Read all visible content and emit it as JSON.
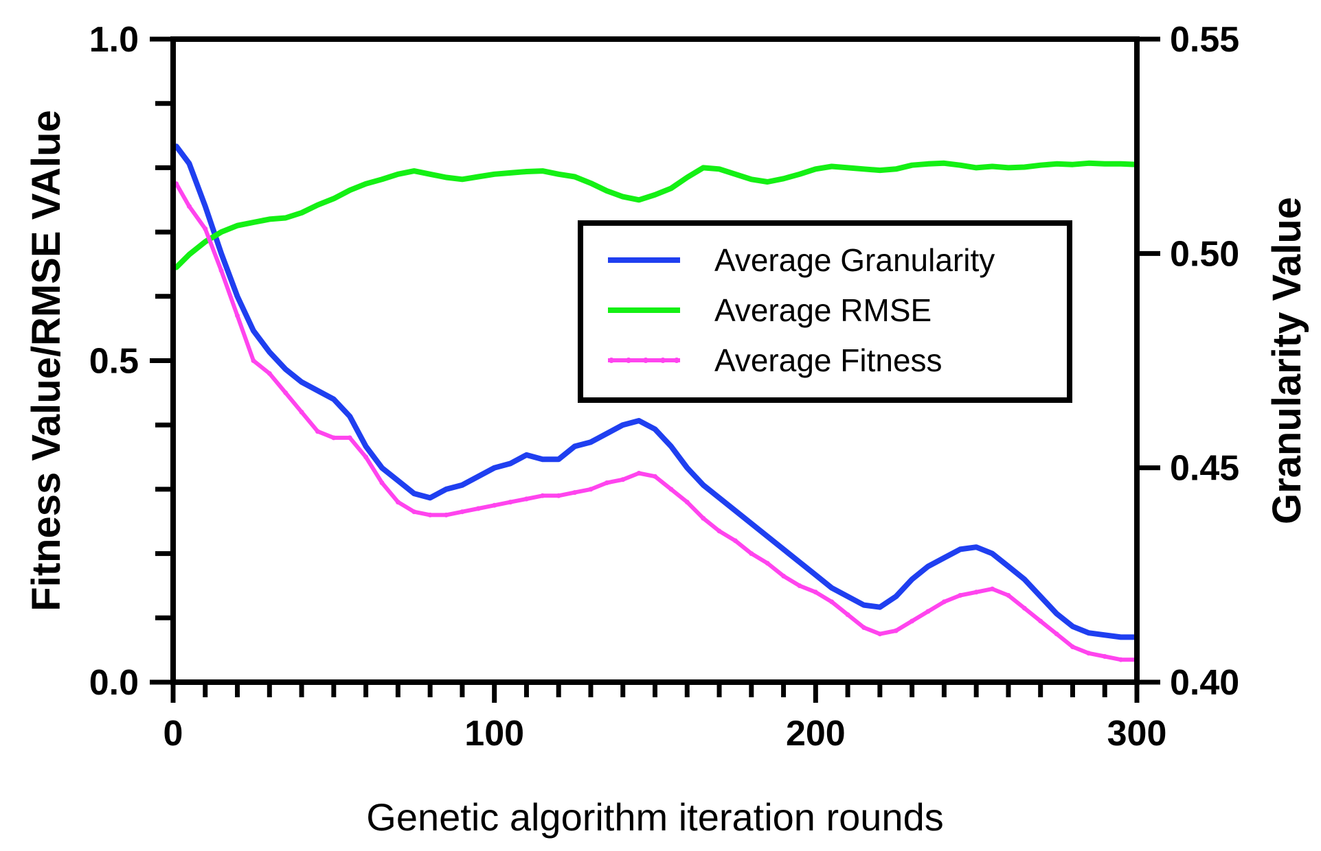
{
  "chart_data": {
    "type": "line",
    "xlabel": "Genetic algorithm iteration rounds",
    "ylabel_left": "Fitness Value/RMSE VAlue",
    "ylabel_right": "Granularity Value",
    "xlim": [
      0,
      300
    ],
    "ylim_left": [
      0.0,
      1.0
    ],
    "ylim_right": [
      0.4,
      0.55
    ],
    "x_ticks": [
      "0",
      "100",
      "200",
      "300"
    ],
    "y_left_ticks": [
      "0.0",
      "0.5",
      "1.0"
    ],
    "y_right_ticks": [
      "0.40",
      "0.45",
      "0.50",
      "0.55"
    ],
    "grid": false,
    "legend_position": "center-right",
    "series": [
      {
        "name": "Average Granularity",
        "axis": "right",
        "color": "#1f3ff0",
        "x": [
          1,
          5,
          10,
          15,
          20,
          25,
          30,
          35,
          40,
          45,
          50,
          55,
          60,
          65,
          70,
          75,
          80,
          85,
          90,
          95,
          100,
          105,
          110,
          115,
          120,
          125,
          130,
          135,
          140,
          145,
          150,
          155,
          160,
          165,
          170,
          175,
          180,
          185,
          190,
          195,
          200,
          205,
          210,
          215,
          220,
          225,
          230,
          235,
          240,
          245,
          250,
          255,
          260,
          265,
          270,
          275,
          280,
          285,
          290,
          295,
          300
        ],
        "values": [
          0.525,
          0.521,
          0.511,
          0.5,
          0.49,
          0.482,
          0.477,
          0.473,
          0.47,
          0.468,
          0.466,
          0.462,
          0.455,
          0.45,
          0.447,
          0.444,
          0.443,
          0.445,
          0.446,
          0.448,
          0.45,
          0.451,
          0.453,
          0.452,
          0.452,
          0.455,
          0.456,
          0.458,
          0.46,
          0.461,
          0.459,
          0.455,
          0.45,
          0.446,
          0.443,
          0.44,
          0.437,
          0.434,
          0.431,
          0.428,
          0.425,
          0.422,
          0.42,
          0.418,
          0.4175,
          0.42,
          0.424,
          0.427,
          0.429,
          0.431,
          0.4315,
          0.43,
          0.427,
          0.424,
          0.42,
          0.416,
          0.413,
          0.4115,
          0.411,
          0.4105,
          0.4105
        ]
      },
      {
        "name": "Average RMSE",
        "axis": "left",
        "color": "#14f014",
        "x": [
          1,
          5,
          10,
          15,
          20,
          25,
          30,
          35,
          40,
          45,
          50,
          55,
          60,
          65,
          70,
          75,
          80,
          85,
          90,
          95,
          100,
          105,
          110,
          115,
          120,
          125,
          130,
          135,
          140,
          145,
          150,
          155,
          160,
          165,
          170,
          175,
          180,
          185,
          190,
          195,
          200,
          205,
          210,
          215,
          220,
          225,
          230,
          235,
          240,
          245,
          250,
          255,
          260,
          265,
          270,
          275,
          280,
          285,
          290,
          295,
          300
        ],
        "values": [
          0.645,
          0.665,
          0.685,
          0.7,
          0.71,
          0.715,
          0.72,
          0.722,
          0.73,
          0.742,
          0.752,
          0.765,
          0.775,
          0.782,
          0.79,
          0.795,
          0.79,
          0.785,
          0.782,
          0.786,
          0.79,
          0.792,
          0.794,
          0.795,
          0.79,
          0.786,
          0.776,
          0.764,
          0.755,
          0.75,
          0.758,
          0.768,
          0.785,
          0.8,
          0.798,
          0.79,
          0.782,
          0.778,
          0.783,
          0.79,
          0.798,
          0.802,
          0.8,
          0.798,
          0.796,
          0.798,
          0.804,
          0.806,
          0.807,
          0.804,
          0.8,
          0.802,
          0.8,
          0.801,
          0.804,
          0.806,
          0.805,
          0.807,
          0.806,
          0.806,
          0.805
        ]
      },
      {
        "name": "Average Fitness",
        "axis": "left",
        "color": "#ff44ee",
        "x": [
          1,
          5,
          10,
          15,
          20,
          25,
          30,
          35,
          40,
          45,
          50,
          55,
          60,
          65,
          70,
          75,
          80,
          85,
          90,
          95,
          100,
          105,
          110,
          115,
          120,
          125,
          130,
          135,
          140,
          145,
          150,
          155,
          160,
          165,
          170,
          175,
          180,
          185,
          190,
          195,
          200,
          205,
          210,
          215,
          220,
          225,
          230,
          235,
          240,
          245,
          250,
          255,
          260,
          265,
          270,
          275,
          280,
          285,
          290,
          295,
          300
        ],
        "values": [
          0.775,
          0.74,
          0.705,
          0.64,
          0.57,
          0.5,
          0.48,
          0.45,
          0.42,
          0.39,
          0.38,
          0.38,
          0.35,
          0.31,
          0.28,
          0.265,
          0.26,
          0.26,
          0.265,
          0.27,
          0.275,
          0.28,
          0.285,
          0.29,
          0.29,
          0.295,
          0.3,
          0.31,
          0.315,
          0.325,
          0.32,
          0.3,
          0.28,
          0.255,
          0.235,
          0.22,
          0.2,
          0.185,
          0.165,
          0.15,
          0.14,
          0.125,
          0.105,
          0.085,
          0.075,
          0.08,
          0.095,
          0.11,
          0.125,
          0.135,
          0.14,
          0.145,
          0.135,
          0.115,
          0.095,
          0.075,
          0.055,
          0.045,
          0.04,
          0.035,
          0.035
        ]
      }
    ]
  }
}
